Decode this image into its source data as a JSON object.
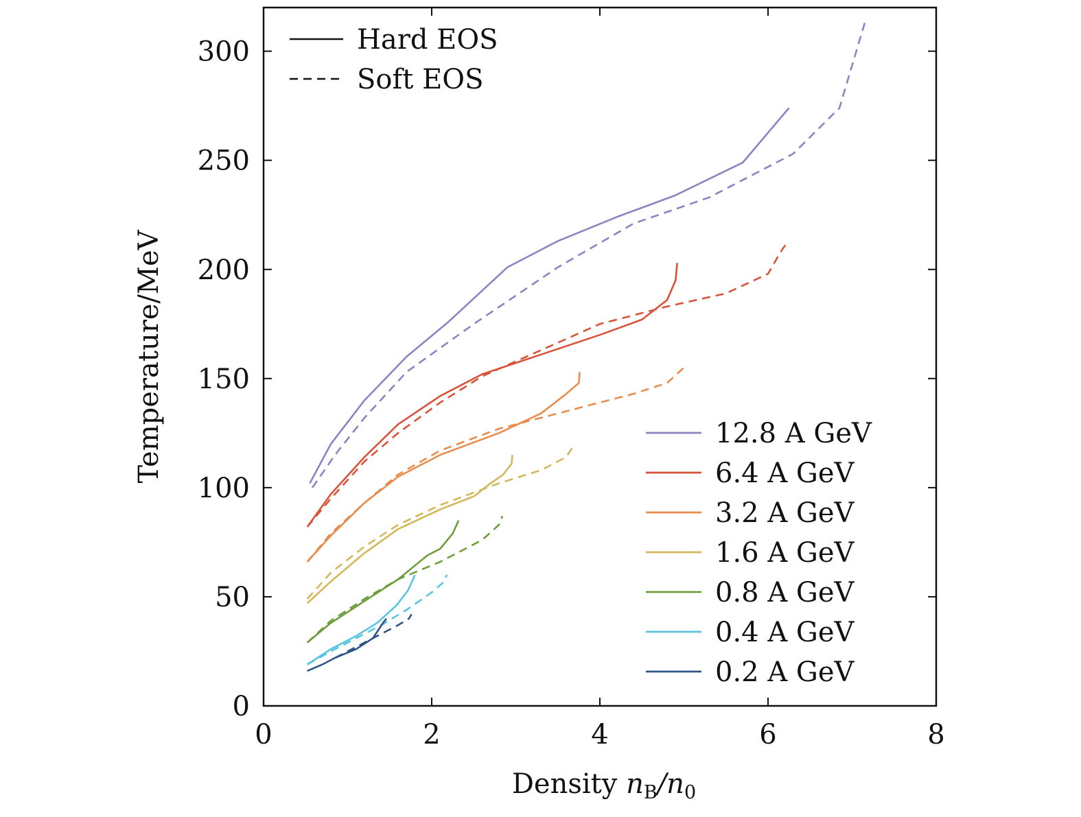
{
  "chart_data": {
    "type": "line",
    "xlabel_prefix": "Density ",
    "xlabel_var": "n",
    "xlabel_sub": "B",
    "xlabel_div": "/n",
    "xlabel_sub2": "0",
    "ylabel": "Temperature/MeV",
    "xlim": [
      0,
      8
    ],
    "ylim": [
      0,
      320
    ],
    "xticks": [
      "0",
      "2",
      "4",
      "6",
      "8"
    ],
    "yticks": [
      "0",
      "50",
      "100",
      "150",
      "200",
      "250",
      "300"
    ],
    "grid": false,
    "style_legend": {
      "position": "top-left",
      "entries": [
        {
          "label": "Hard EOS",
          "dash": "solid"
        },
        {
          "label": "Soft EOS",
          "dash": "dashed"
        }
      ]
    },
    "energy_legend": {
      "position": "lower-right",
      "entries": [
        {
          "label": "12.8 A GeV",
          "color": "#9081c4"
        },
        {
          "label": "6.4 A GeV",
          "color": "#d9533a"
        },
        {
          "label": "3.2 A GeV",
          "color": "#e88c4c"
        },
        {
          "label": "1.6 A GeV",
          "color": "#d4b75a"
        },
        {
          "label": "0.8 A GeV",
          "color": "#6f9e3c"
        },
        {
          "label": "0.4 A GeV",
          "color": "#5ac3e0"
        },
        {
          "label": "0.2 A GeV",
          "color": "#2f5487"
        }
      ]
    },
    "series": [
      {
        "energy": "12.8 A GeV",
        "eos": "hard",
        "color": "#9081c4",
        "points": [
          [
            0.55,
            102
          ],
          [
            0.8,
            120
          ],
          [
            1.2,
            140
          ],
          [
            1.7,
            160
          ],
          [
            2.2,
            176
          ],
          [
            2.9,
            201
          ],
          [
            3.5,
            213
          ],
          [
            4.2,
            224
          ],
          [
            4.9,
            234
          ],
          [
            5.7,
            249
          ],
          [
            6.25,
            274
          ]
        ]
      },
      {
        "energy": "12.8 A GeV",
        "eos": "soft",
        "color": "#9081c4",
        "points": [
          [
            0.58,
            100
          ],
          [
            0.85,
            115
          ],
          [
            1.2,
            132
          ],
          [
            1.7,
            153
          ],
          [
            2.5,
            175
          ],
          [
            3.5,
            201
          ],
          [
            4.4,
            221
          ],
          [
            5.3,
            233
          ],
          [
            6.3,
            253
          ],
          [
            6.85,
            274
          ],
          [
            7.15,
            313
          ]
        ]
      },
      {
        "energy": "6.4 A GeV",
        "eos": "hard",
        "color": "#d9533a",
        "points": [
          [
            0.52,
            82
          ],
          [
            0.8,
            97
          ],
          [
            1.2,
            114
          ],
          [
            1.6,
            129
          ],
          [
            2.1,
            142
          ],
          [
            2.6,
            152
          ],
          [
            3.3,
            161
          ],
          [
            4.0,
            170
          ],
          [
            4.5,
            177
          ],
          [
            4.8,
            186
          ],
          [
            4.9,
            195
          ],
          [
            4.92,
            203
          ]
        ]
      },
      {
        "energy": "6.4 A GeV",
        "eos": "soft",
        "color": "#d9533a",
        "points": [
          [
            0.52,
            82
          ],
          [
            0.8,
            95
          ],
          [
            1.2,
            112
          ],
          [
            1.6,
            125
          ],
          [
            2.1,
            139
          ],
          [
            2.6,
            151
          ],
          [
            3.3,
            163
          ],
          [
            4.0,
            175
          ],
          [
            4.8,
            183
          ],
          [
            5.5,
            189
          ],
          [
            6.0,
            198
          ],
          [
            6.15,
            208
          ],
          [
            6.22,
            212
          ]
        ]
      },
      {
        "energy": "3.2 A GeV",
        "eos": "hard",
        "color": "#e88c4c",
        "points": [
          [
            0.52,
            66
          ],
          [
            0.8,
            78
          ],
          [
            1.2,
            93
          ],
          [
            1.6,
            105
          ],
          [
            2.1,
            115
          ],
          [
            2.8,
            125
          ],
          [
            3.3,
            134
          ],
          [
            3.6,
            143
          ],
          [
            3.75,
            148
          ],
          [
            3.76,
            153
          ]
        ]
      },
      {
        "energy": "3.2 A GeV",
        "eos": "soft",
        "color": "#e88c4c",
        "points": [
          [
            0.52,
            66
          ],
          [
            0.8,
            79
          ],
          [
            1.2,
            93
          ],
          [
            1.6,
            106
          ],
          [
            2.1,
            117
          ],
          [
            2.8,
            127
          ],
          [
            3.6,
            135
          ],
          [
            4.4,
            143
          ],
          [
            4.8,
            148
          ],
          [
            5.0,
            155
          ]
        ]
      },
      {
        "energy": "1.6 A GeV",
        "eos": "hard",
        "color": "#d4b75a",
        "points": [
          [
            0.52,
            47
          ],
          [
            0.8,
            57
          ],
          [
            1.2,
            70
          ],
          [
            1.6,
            81
          ],
          [
            2.1,
            90
          ],
          [
            2.5,
            96
          ],
          [
            2.7,
            102
          ],
          [
            2.85,
            106
          ],
          [
            2.95,
            111
          ],
          [
            2.96,
            115
          ]
        ]
      },
      {
        "energy": "1.6 A GeV",
        "eos": "soft",
        "color": "#d4b75a",
        "points": [
          [
            0.52,
            49
          ],
          [
            0.8,
            61
          ],
          [
            1.2,
            73
          ],
          [
            1.6,
            83
          ],
          [
            2.1,
            92
          ],
          [
            2.8,
            102
          ],
          [
            3.3,
            108
          ],
          [
            3.6,
            114
          ],
          [
            3.7,
            120
          ]
        ]
      },
      {
        "energy": "0.8 A GeV",
        "eos": "hard",
        "color": "#6f9e3c",
        "points": [
          [
            0.52,
            29
          ],
          [
            0.8,
            38
          ],
          [
            1.2,
            48
          ],
          [
            1.6,
            58
          ],
          [
            1.95,
            69
          ],
          [
            2.1,
            72
          ],
          [
            2.25,
            79
          ],
          [
            2.32,
            85
          ]
        ]
      },
      {
        "energy": "0.8 A GeV",
        "eos": "soft",
        "color": "#6f9e3c",
        "points": [
          [
            0.52,
            29
          ],
          [
            0.8,
            39
          ],
          [
            1.2,
            49
          ],
          [
            1.6,
            58
          ],
          [
            2.1,
            66
          ],
          [
            2.6,
            76
          ],
          [
            2.8,
            83
          ],
          [
            2.84,
            87
          ]
        ]
      },
      {
        "energy": "0.4 A GeV",
        "eos": "hard",
        "color": "#5ac3e0",
        "points": [
          [
            0.52,
            19
          ],
          [
            0.8,
            26
          ],
          [
            1.1,
            32
          ],
          [
            1.35,
            38
          ],
          [
            1.58,
            46
          ],
          [
            1.72,
            53
          ],
          [
            1.8,
            60
          ]
        ]
      },
      {
        "energy": "0.4 A GeV",
        "eos": "soft",
        "color": "#5ac3e0",
        "points": [
          [
            0.52,
            19
          ],
          [
            0.8,
            25
          ],
          [
            1.1,
            31
          ],
          [
            1.4,
            37
          ],
          [
            1.7,
            44
          ],
          [
            2.0,
            52
          ],
          [
            2.15,
            57
          ],
          [
            2.18,
            60
          ]
        ]
      },
      {
        "energy": "0.2 A GeV",
        "eos": "hard",
        "color": "#2f5487",
        "points": [
          [
            0.52,
            16
          ],
          [
            0.7,
            19
          ],
          [
            0.85,
            22
          ],
          [
            1.1,
            26
          ],
          [
            1.3,
            31
          ],
          [
            1.42,
            38
          ],
          [
            1.46,
            40
          ]
        ]
      },
      {
        "energy": "0.2 A GeV",
        "eos": "soft",
        "color": "#2f5487",
        "points": [
          [
            0.85,
            22
          ],
          [
            1.1,
            27
          ],
          [
            1.35,
            32
          ],
          [
            1.6,
            37
          ],
          [
            1.73,
            40
          ],
          [
            1.76,
            42
          ]
        ]
      }
    ]
  }
}
